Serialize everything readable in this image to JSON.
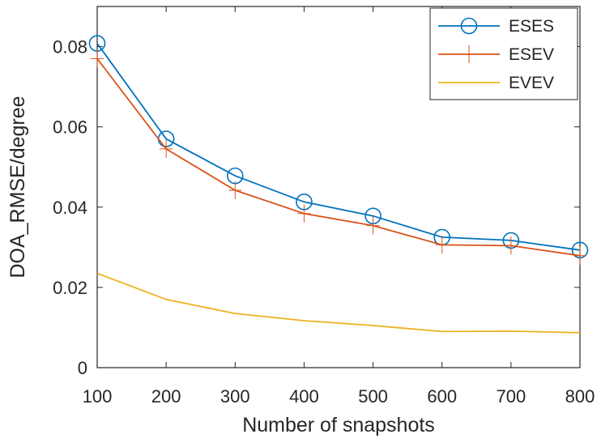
{
  "chart_data": {
    "type": "line",
    "title": "",
    "xlabel": "Number of snapshots",
    "ylabel": "DOA_RMSE/degree",
    "x": [
      100,
      200,
      300,
      400,
      500,
      600,
      700,
      800
    ],
    "xlim": [
      100,
      800
    ],
    "ylim": [
      0,
      0.09
    ],
    "xticks": [
      "100",
      "200",
      "300",
      "400",
      "500",
      "600",
      "700",
      "800"
    ],
    "yticks": [
      {
        "value": 0,
        "label": "0"
      },
      {
        "value": 0.02,
        "label": "0.02"
      },
      {
        "value": 0.04,
        "label": "0.04"
      },
      {
        "value": 0.06,
        "label": "0.06"
      },
      {
        "value": 0.08,
        "label": "0.08"
      }
    ],
    "grid": false,
    "legend_position": "top-right",
    "series": [
      {
        "name": "ESES",
        "color": "#0072BD",
        "marker": "circle",
        "values": [
          0.0808,
          0.057,
          0.0478,
          0.0413,
          0.0378,
          0.0325,
          0.0317,
          0.0293
        ]
      },
      {
        "name": "ESEV",
        "color": "#D95319",
        "marker": "plus",
        "values": [
          0.077,
          0.0545,
          0.0442,
          0.0384,
          0.0354,
          0.0306,
          0.0304,
          0.0279
        ]
      },
      {
        "name": "EVEV",
        "color": "#EDB120",
        "marker": "none",
        "values": [
          0.0235,
          0.017,
          0.0135,
          0.0117,
          0.0105,
          0.009,
          0.0091,
          0.0087
        ]
      }
    ]
  }
}
